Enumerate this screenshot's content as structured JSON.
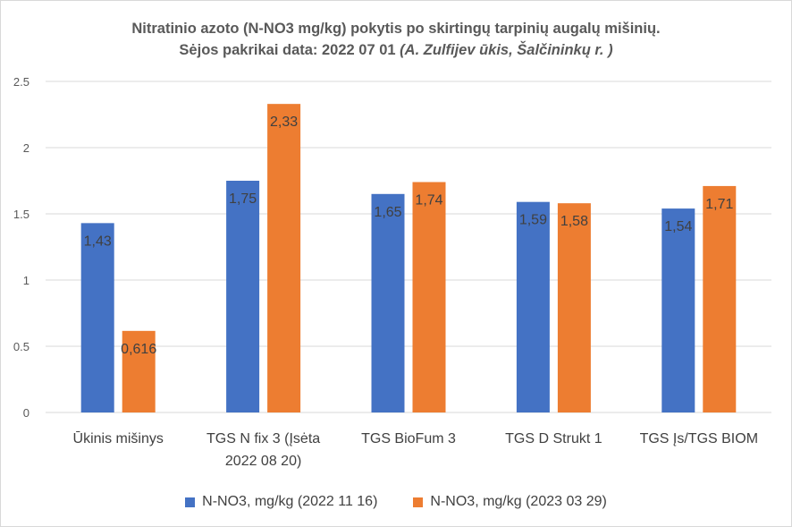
{
  "title_line1": "Nitratinio azoto (N-NO3 mg/kg) pokytis po skirtingų tarpinių augalų mišinių.",
  "title_line2_plain": "Sėjos pakrikai data: 2022 07 01  ",
  "title_line2_italic": "(A. Zulfijev ūkis, Šalčininkų r. )",
  "chart_data": {
    "type": "bar",
    "categories": [
      [
        "Ūkinis mišinys"
      ],
      [
        "TGS N fix 3  (Įsėta",
        "2022 08 20)"
      ],
      [
        "TGS BioFum 3"
      ],
      [
        "TGS D Strukt 1"
      ],
      [
        "TGS Įs/TGS BIOM"
      ]
    ],
    "series": [
      {
        "name": "N-NO3, mg/kg (2022 11 16)",
        "color": "#4472c4",
        "values": [
          1.43,
          1.75,
          1.65,
          1.59,
          1.54
        ],
        "labels": [
          "1,43",
          "1,75",
          "1,65",
          "1,59",
          "1,54"
        ]
      },
      {
        "name": "N-NO3, mg/kg (2023 03 29)",
        "color": "#ed7d31",
        "values": [
          0.616,
          2.33,
          1.74,
          1.58,
          1.71
        ],
        "labels": [
          "0,616",
          "2,33",
          "1,74",
          "1,58",
          "1,71"
        ]
      }
    ],
    "ylim": [
      0,
      2.5
    ],
    "yticks": [
      0,
      0.5,
      1,
      1.5,
      2,
      2.5
    ],
    "ytick_labels": [
      "0",
      "0.5",
      "1",
      "1.5",
      "2",
      "2.5"
    ],
    "grid": true,
    "legend_position": "bottom"
  }
}
